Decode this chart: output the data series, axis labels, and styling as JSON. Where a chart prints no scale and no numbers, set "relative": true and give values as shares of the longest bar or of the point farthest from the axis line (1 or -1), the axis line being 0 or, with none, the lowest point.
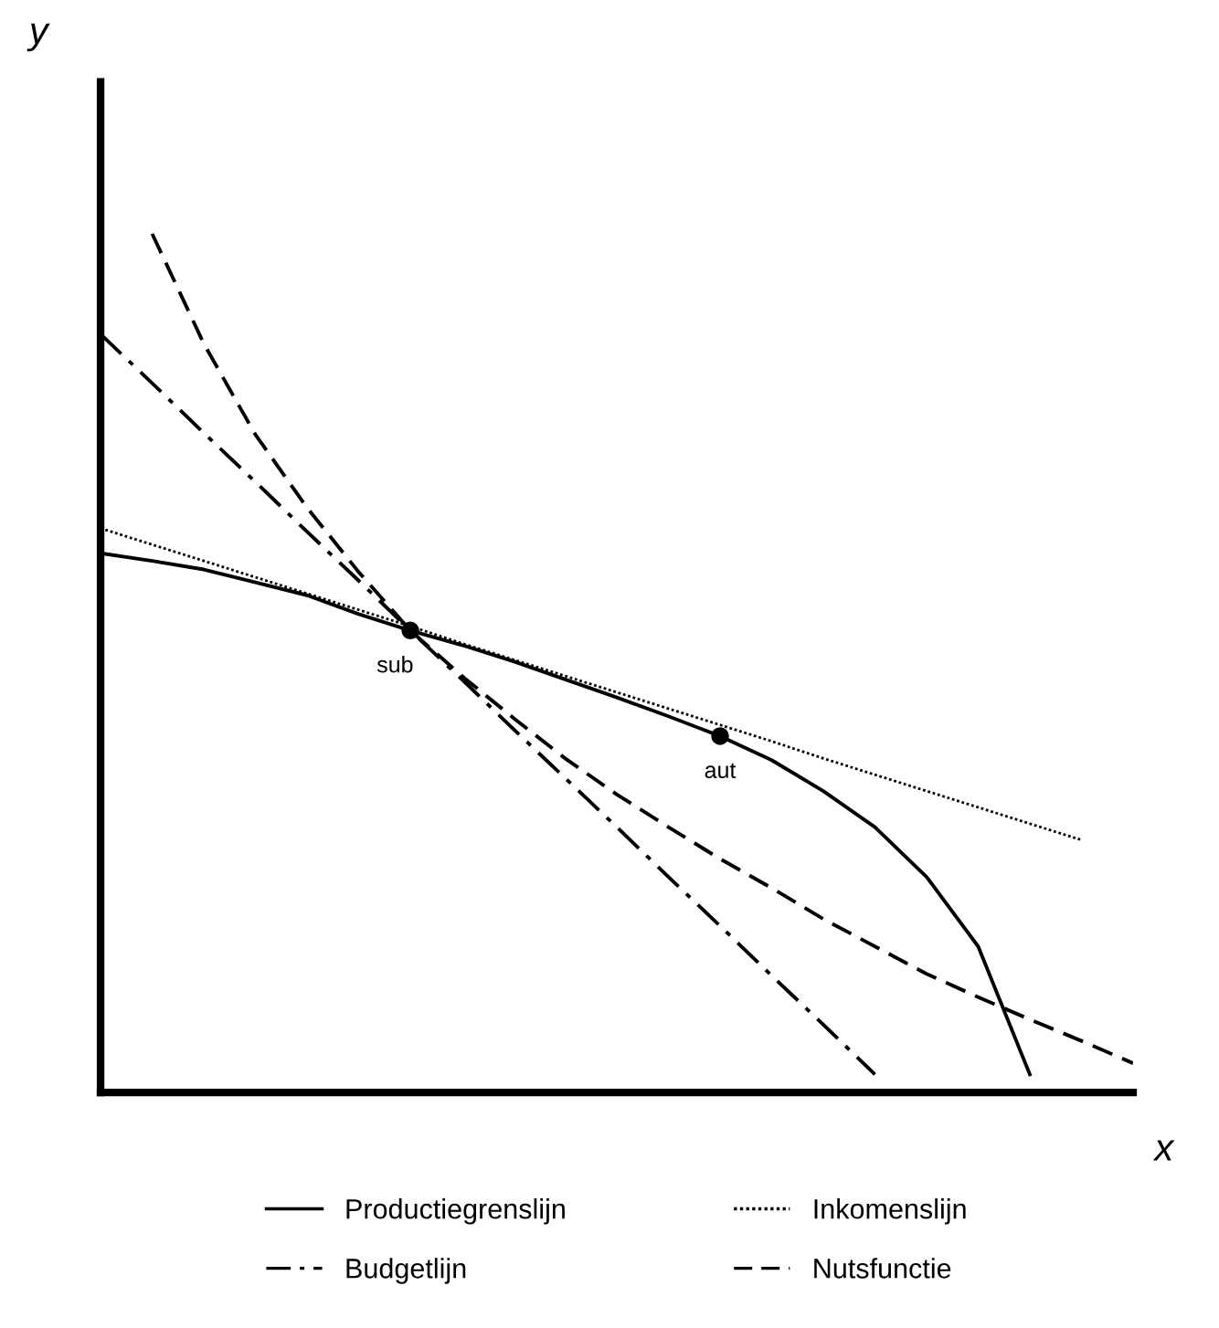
{
  "chart_data": {
    "type": "line",
    "relative": true,
    "xlabel": "x",
    "ylabel": "y",
    "annotations": [
      {
        "text": "sub",
        "y": 0.538
      },
      {
        "text": "aut",
        "y": 0.415
      }
    ],
    "grid": false,
    "legend": "bottom",
    "marker": "none",
    "categories": [
      null,
      null,
      null,
      null,
      null,
      null,
      null,
      null,
      null,
      null,
      null,
      null,
      null,
      null,
      null,
      null,
      null,
      null,
      null,
      null,
      null
    ],
    "series": [
      {
        "name": "Productiegrenslijn",
        "color": "#000000",
        "line_style": "solid",
        "values": [
          0.628,
          0.619,
          0.609,
          0.594,
          0.579,
          0.557,
          0.538,
          0.521,
          0.502,
          0.481,
          0.46,
          0.438,
          0.415,
          0.387,
          0.351,
          0.309,
          0.251,
          0.17,
          0.021,
          null,
          null
        ]
      },
      {
        "name": "Inkomenslijn",
        "color": "#000000",
        "line_style": "dotted",
        "values": [
          0.657,
          0.638,
          0.619,
          0.6,
          0.581,
          0.562,
          0.543,
          0.523,
          0.504,
          0.485,
          0.466,
          0.447,
          0.428,
          0.409,
          0.389,
          0.37,
          0.351,
          0.332,
          0.313,
          0.294,
          null
        ]
      },
      {
        "name": "Budgetlijn",
        "color": "#000000",
        "line_style": "dashdot",
        "values": [
          0.883,
          0.826,
          0.768,
          0.711,
          0.653,
          0.596,
          0.538,
          0.481,
          0.423,
          0.366,
          0.309,
          0.251,
          0.194,
          0.136,
          0.079,
          0.021,
          null,
          null,
          null,
          null,
          null
        ]
      },
      {
        "name": "Nutsfunctie",
        "color": "#000000",
        "line_style": "dashed",
        "values": [
          null,
          1.0,
          0.872,
          0.766,
          0.681,
          0.606,
          0.538,
          0.485,
          0.436,
          0.389,
          0.347,
          0.309,
          0.272,
          0.238,
          0.202,
          0.17,
          0.138,
          0.111,
          0.085,
          0.06,
          0.034
        ]
      }
    ]
  }
}
